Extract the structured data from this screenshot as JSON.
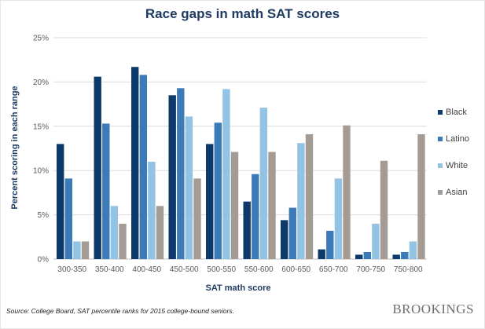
{
  "chart_data": {
    "type": "bar",
    "title": "Race gaps in math SAT scores",
    "xlabel": "SAT math score",
    "ylabel": "Percent scoring in each range",
    "ylim": [
      0,
      25
    ],
    "yticks": [
      "0%",
      "5%",
      "10%",
      "15%",
      "20%",
      "25%"
    ],
    "ytick_values": [
      0,
      5,
      10,
      15,
      20,
      25
    ],
    "grid": true,
    "legend_position": "right",
    "categories": [
      "300-350",
      "350-400",
      "400-450",
      "450-500",
      "500-550",
      "550-600",
      "600-650",
      "650-700",
      "700-750",
      "750-800"
    ],
    "series": [
      {
        "name": "Black",
        "color": "#0e3a6b",
        "values": [
          13.0,
          20.6,
          21.7,
          18.5,
          13.0,
          6.5,
          4.4,
          1.1,
          0.5,
          0.5
        ]
      },
      {
        "name": "Latino",
        "color": "#3d7ab8",
        "values": [
          9.1,
          15.3,
          20.8,
          19.3,
          15.4,
          9.6,
          5.8,
          3.2,
          0.8,
          0.8
        ]
      },
      {
        "name": "White",
        "color": "#93c3e4",
        "values": [
          2.0,
          6.0,
          11.0,
          16.1,
          19.2,
          17.1,
          13.1,
          9.1,
          4.0,
          2.0
        ]
      },
      {
        "name": "Asian",
        "color": "#a49c94",
        "values": [
          2.0,
          4.0,
          6.0,
          9.1,
          12.1,
          12.1,
          14.1,
          15.1,
          11.1,
          14.1
        ]
      }
    ]
  },
  "footer": {
    "source": "Source: College Board, SAT percentile ranks for 2015 college-bound seniors.",
    "brand": "BROOKINGS"
  }
}
